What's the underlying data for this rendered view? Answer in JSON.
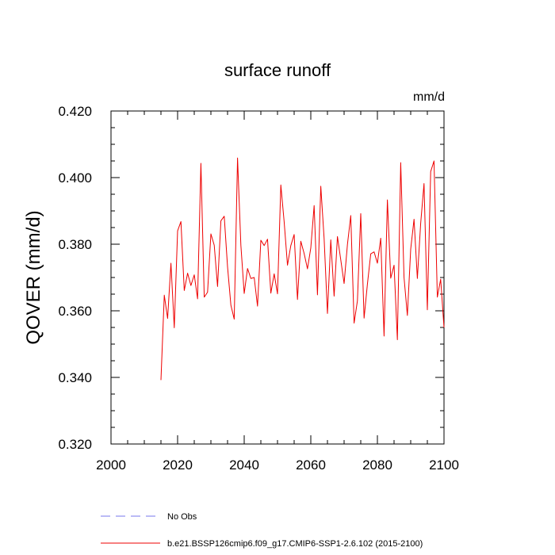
{
  "chart_data": {
    "type": "line",
    "title": "surface runoff",
    "units_label": "mm/d",
    "ylabel": "QOVER  (mm/d)",
    "xlabel": "",
    "xlim": [
      2000,
      2100
    ],
    "ylim": [
      0.32,
      0.42
    ],
    "x_ticks": [
      2000,
      2020,
      2040,
      2060,
      2080,
      2100
    ],
    "x_tick_labels": [
      "2000",
      "2020",
      "2040",
      "2060",
      "2080",
      "2100"
    ],
    "y_ticks": [
      0.32,
      0.34,
      0.36,
      0.38,
      0.4,
      0.42
    ],
    "y_tick_labels": [
      "0.320",
      "0.340",
      "0.360",
      "0.380",
      "0.400",
      "0.420"
    ],
    "legend": [
      {
        "label": "No Obs",
        "color": "#7777ee",
        "style": "dashed"
      },
      {
        "label": "b.e21.BSSP126cmip6.f09_g17.CMIP6-SSP1-2.6.102 (2015-2100)",
        "color": "#ee0000",
        "style": "solid"
      }
    ],
    "series": [
      {
        "name": "b.e21.BSSP126cmip6.f09_g17.CMIP6-SSP1-2.6.102 (2015-2100)",
        "color": "#ee0000",
        "x": [
          2015,
          2016,
          2017,
          2018,
          2019,
          2020,
          2021,
          2022,
          2023,
          2024,
          2025,
          2026,
          2027,
          2028,
          2029,
          2030,
          2031,
          2032,
          2033,
          2034,
          2035,
          2036,
          2037,
          2038,
          2039,
          2040,
          2041,
          2042,
          2043,
          2044,
          2045,
          2046,
          2047,
          2048,
          2049,
          2050,
          2051,
          2052,
          2053,
          2054,
          2055,
          2056,
          2057,
          2058,
          2059,
          2060,
          2061,
          2062,
          2063,
          2064,
          2065,
          2066,
          2067,
          2068,
          2069,
          2070,
          2071,
          2072,
          2073,
          2074,
          2075,
          2076,
          2077,
          2078,
          2079,
          2080,
          2081,
          2082,
          2083,
          2084,
          2085,
          2086,
          2087,
          2088,
          2089,
          2090,
          2091,
          2092,
          2093,
          2094,
          2095,
          2096,
          2097,
          2098,
          2099,
          2100
        ],
        "values": [
          0.3392,
          0.3647,
          0.3577,
          0.3743,
          0.3549,
          0.384,
          0.3868,
          0.3661,
          0.3713,
          0.3676,
          0.3708,
          0.3636,
          0.4043,
          0.3641,
          0.3656,
          0.3831,
          0.3797,
          0.3673,
          0.387,
          0.3884,
          0.3732,
          0.3617,
          0.3575,
          0.4059,
          0.3797,
          0.3652,
          0.3727,
          0.3697,
          0.37,
          0.3614,
          0.3812,
          0.3796,
          0.3815,
          0.3653,
          0.3711,
          0.3651,
          0.3978,
          0.3867,
          0.3737,
          0.3796,
          0.3829,
          0.3634,
          0.3809,
          0.3772,
          0.3726,
          0.3789,
          0.3916,
          0.3648,
          0.3974,
          0.3817,
          0.3592,
          0.3813,
          0.3644,
          0.3823,
          0.3753,
          0.3682,
          0.3799,
          0.3886,
          0.3563,
          0.363,
          0.3892,
          0.3578,
          0.368,
          0.3771,
          0.3777,
          0.3743,
          0.3818,
          0.3524,
          0.3933,
          0.3698,
          0.3737,
          0.3513,
          0.4045,
          0.37,
          0.3586,
          0.3785,
          0.3875,
          0.3697,
          0.3863,
          0.3982,
          0.3603,
          0.4018,
          0.405,
          0.3641,
          0.3695,
          0.355
        ]
      }
    ]
  }
}
